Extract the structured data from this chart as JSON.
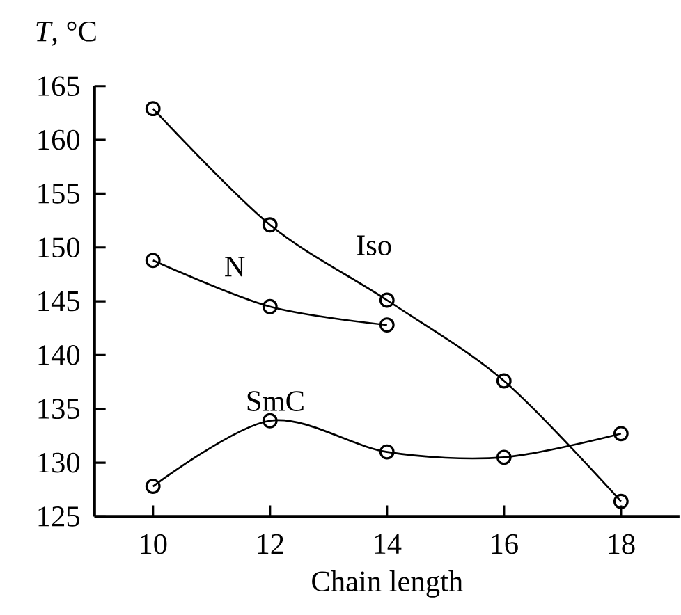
{
  "chart_data": {
    "type": "line",
    "xlabel": "Chain length",
    "ylabel": "*T*, °C",
    "x": [
      10,
      12,
      14,
      16,
      18
    ],
    "series": [
      {
        "name": "Iso",
        "color": "#000000",
        "values": [
          162.9,
          152.1,
          145.1,
          137.6,
          126.4
        ]
      },
      {
        "name": "N",
        "color": "#000000",
        "values": [
          148.8,
          144.5,
          142.8,
          null,
          null
        ]
      },
      {
        "name": "SmC",
        "color": "#000000",
        "values": [
          127.8,
          133.9,
          131.0,
          130.5,
          132.7
        ]
      }
    ],
    "xlim": [
      9,
      19
    ],
    "ylim": [
      125,
      165
    ],
    "xticks": [
      10,
      12,
      14,
      16,
      18
    ],
    "yticks": [
      125,
      130,
      135,
      140,
      145,
      150,
      155,
      160,
      165
    ],
    "marker": "circle",
    "line_style": "solid",
    "grid": false,
    "legend": false
  }
}
